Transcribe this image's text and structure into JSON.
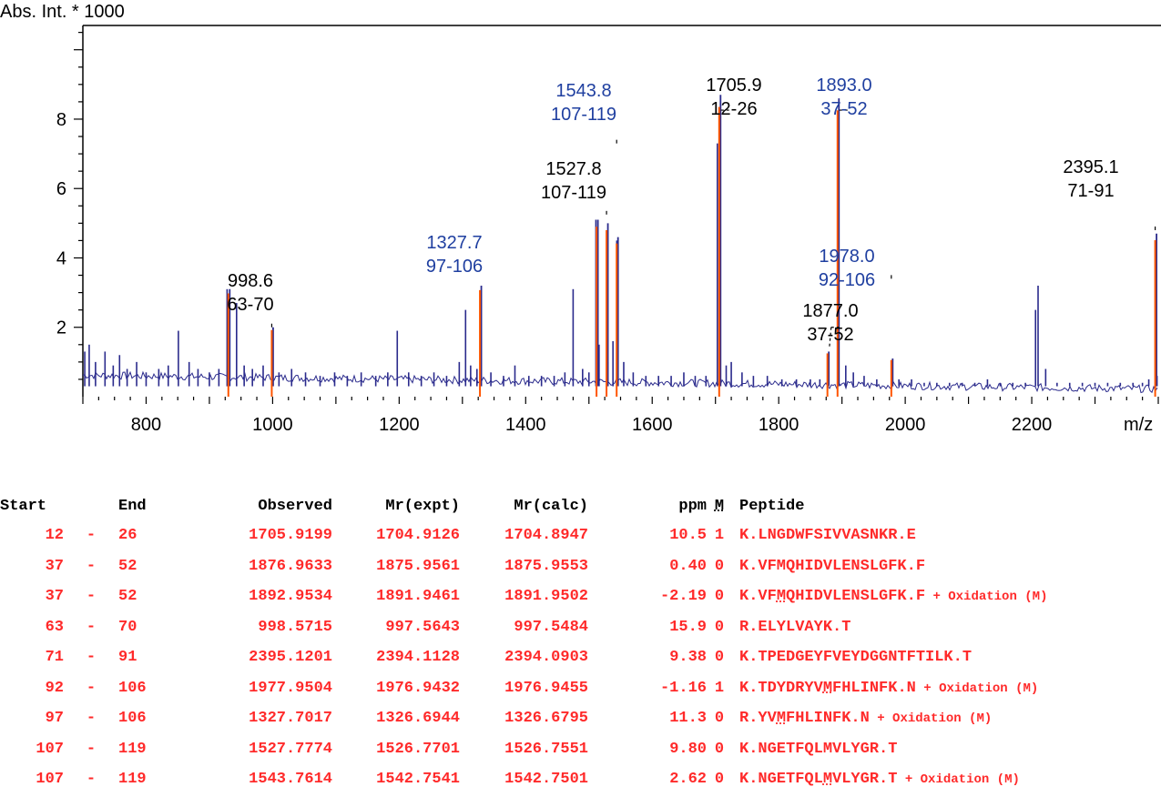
{
  "colors": {
    "spectrum": "#2a2a8c",
    "matched": "#ff5500",
    "blue_label": "#1f3fa0",
    "black_label": "#000000",
    "table_text": "#ff2a2a"
  },
  "chart_data": {
    "type": "line",
    "ylabel": "Abs. Int. * 1000",
    "xlabel": "m/z",
    "xlim": [
      700,
      2400
    ],
    "ylim": [
      0,
      10.7
    ],
    "x_ticks": [
      800,
      1000,
      1200,
      1400,
      1600,
      1800,
      2000,
      2200
    ],
    "y_ticks": [
      2,
      4,
      6,
      8
    ],
    "baseline_peaks": [
      {
        "mz": 703,
        "h": 1.3
      },
      {
        "mz": 710,
        "h": 1.5
      },
      {
        "mz": 720,
        "h": 1.0
      },
      {
        "mz": 735,
        "h": 1.3
      },
      {
        "mz": 748,
        "h": 0.9
      },
      {
        "mz": 758,
        "h": 1.2
      },
      {
        "mz": 770,
        "h": 0.8
      },
      {
        "mz": 785,
        "h": 1.0
      },
      {
        "mz": 800,
        "h": 0.7
      },
      {
        "mz": 820,
        "h": 0.8
      },
      {
        "mz": 835,
        "h": 0.9
      },
      {
        "mz": 851,
        "h": 1.9
      },
      {
        "mz": 868,
        "h": 1.0
      },
      {
        "mz": 882,
        "h": 0.8
      },
      {
        "mz": 900,
        "h": 0.7
      },
      {
        "mz": 915,
        "h": 0.8
      },
      {
        "mz": 928,
        "h": 3.1
      },
      {
        "mz": 943,
        "h": 2.7
      },
      {
        "mz": 955,
        "h": 0.9
      },
      {
        "mz": 968,
        "h": 0.8
      },
      {
        "mz": 985,
        "h": 0.9
      },
      {
        "mz": 1010,
        "h": 0.7
      },
      {
        "mz": 1030,
        "h": 0.8
      },
      {
        "mz": 1052,
        "h": 0.7
      },
      {
        "mz": 1075,
        "h": 0.6
      },
      {
        "mz": 1098,
        "h": 0.7
      },
      {
        "mz": 1118,
        "h": 0.6
      },
      {
        "mz": 1140,
        "h": 0.7
      },
      {
        "mz": 1163,
        "h": 0.6
      },
      {
        "mz": 1182,
        "h": 0.7
      },
      {
        "mz": 1197,
        "h": 1.9
      },
      {
        "mz": 1215,
        "h": 0.7
      },
      {
        "mz": 1235,
        "h": 0.6
      },
      {
        "mz": 1255,
        "h": 0.7
      },
      {
        "mz": 1275,
        "h": 0.6
      },
      {
        "mz": 1295,
        "h": 1.0
      },
      {
        "mz": 1305,
        "h": 2.5
      },
      {
        "mz": 1313,
        "h": 0.9
      },
      {
        "mz": 1323,
        "h": 0.8
      },
      {
        "mz": 1345,
        "h": 0.7
      },
      {
        "mz": 1365,
        "h": 0.6
      },
      {
        "mz": 1383,
        "h": 0.9
      },
      {
        "mz": 1405,
        "h": 0.6
      },
      {
        "mz": 1425,
        "h": 0.6
      },
      {
        "mz": 1445,
        "h": 0.6
      },
      {
        "mz": 1462,
        "h": 0.7
      },
      {
        "mz": 1475,
        "h": 3.1
      },
      {
        "mz": 1490,
        "h": 0.8
      },
      {
        "mz": 1500,
        "h": 0.7
      },
      {
        "mz": 1511,
        "h": 5.1
      },
      {
        "mz": 1516,
        "h": 1.5
      },
      {
        "mz": 1530,
        "h": 1.0
      },
      {
        "mz": 1538,
        "h": 1.6
      },
      {
        "mz": 1544,
        "h": 4.5
      },
      {
        "mz": 1555,
        "h": 1.0
      },
      {
        "mz": 1570,
        "h": 0.7
      },
      {
        "mz": 1590,
        "h": 0.6
      },
      {
        "mz": 1610,
        "h": 0.6
      },
      {
        "mz": 1630,
        "h": 0.6
      },
      {
        "mz": 1650,
        "h": 0.7
      },
      {
        "mz": 1668,
        "h": 0.6
      },
      {
        "mz": 1685,
        "h": 0.6
      },
      {
        "mz": 1703,
        "h": 7.3
      },
      {
        "mz": 1717,
        "h": 0.9
      },
      {
        "mz": 1725,
        "h": 1.0
      },
      {
        "mz": 1742,
        "h": 0.7
      },
      {
        "mz": 1760,
        "h": 0.6
      },
      {
        "mz": 1782,
        "h": 0.6
      },
      {
        "mz": 1805,
        "h": 0.5
      },
      {
        "mz": 1828,
        "h": 0.5
      },
      {
        "mz": 1850,
        "h": 0.5
      },
      {
        "mz": 1865,
        "h": 0.5
      },
      {
        "mz": 1895,
        "h": 2.3
      },
      {
        "mz": 1906,
        "h": 0.9
      },
      {
        "mz": 1918,
        "h": 0.7
      },
      {
        "mz": 1935,
        "h": 0.6
      },
      {
        "mz": 1955,
        "h": 0.5
      },
      {
        "mz": 1990,
        "h": 0.5
      },
      {
        "mz": 2010,
        "h": 0.5
      },
      {
        "mz": 2030,
        "h": 0.4
      },
      {
        "mz": 2050,
        "h": 0.4
      },
      {
        "mz": 2070,
        "h": 0.4
      },
      {
        "mz": 2090,
        "h": 0.4
      },
      {
        "mz": 2110,
        "h": 0.4
      },
      {
        "mz": 2130,
        "h": 0.5
      },
      {
        "mz": 2150,
        "h": 0.4
      },
      {
        "mz": 2170,
        "h": 0.4
      },
      {
        "mz": 2190,
        "h": 0.4
      },
      {
        "mz": 2206,
        "h": 2.5
      },
      {
        "mz": 2210,
        "h": 3.2
      },
      {
        "mz": 2222,
        "h": 0.8
      },
      {
        "mz": 2240,
        "h": 0.4
      },
      {
        "mz": 2260,
        "h": 0.4
      },
      {
        "mz": 2280,
        "h": 0.4
      },
      {
        "mz": 2300,
        "h": 0.4
      },
      {
        "mz": 2320,
        "h": 0.4
      },
      {
        "mz": 2340,
        "h": 0.4
      },
      {
        "mz": 2360,
        "h": 0.4
      },
      {
        "mz": 2375,
        "h": 0.4
      },
      {
        "mz": 2385,
        "h": 0.5
      },
      {
        "mz": 2396,
        "h": 1.5
      },
      {
        "mz": 2398,
        "h": 0.6
      }
    ],
    "matched_peaks": [
      {
        "mz": 930.0,
        "h": 3.1
      },
      {
        "mz": 998.6,
        "h": 2.0
      },
      {
        "mz": 1327.7,
        "h": 3.2
      },
      {
        "mz": 1512.0,
        "h": 5.1
      },
      {
        "mz": 1527.8,
        "h": 5.0
      },
      {
        "mz": 1543.8,
        "h": 4.6
      },
      {
        "mz": 1705.9,
        "h": 8.7
      },
      {
        "mz": 1877.0,
        "h": 1.3
      },
      {
        "mz": 1893.0,
        "h": 8.6
      },
      {
        "mz": 1978.0,
        "h": 1.1
      },
      {
        "mz": 2395.1,
        "h": 4.7
      }
    ],
    "annotations": [
      {
        "mz_text": "998.6",
        "range": "63-70",
        "color": "black"
      },
      {
        "mz_text": "1327.7",
        "range": "97-106",
        "color": "blue"
      },
      {
        "mz_text": "1527.8",
        "range": "107-119",
        "color": "black"
      },
      {
        "mz_text": "1543.8",
        "range": "107-119",
        "color": "blue"
      },
      {
        "mz_text": "1705.9",
        "range": "12-26",
        "color": "black"
      },
      {
        "mz_text": "1893.0",
        "range": "37-52",
        "color": "blue"
      },
      {
        "mz_text": "1877.0",
        "range": "37-52",
        "color": "black"
      },
      {
        "mz_text": "1978.0",
        "range": "92-106",
        "color": "blue"
      },
      {
        "mz_text": "2395.1",
        "range": "71-91",
        "color": "black"
      }
    ]
  },
  "table": {
    "headers": {
      "start": "Start",
      "end": "End",
      "observed": "Observed",
      "mr_expt": "Mr(expt)",
      "mr_calc": "Mr(calc)",
      "ppm": "ppm",
      "m": "M",
      "peptide": "Peptide"
    },
    "rows": [
      {
        "start": "12",
        "dash": "-",
        "end": "26",
        "observed": "1705.9199",
        "mr_expt": "1704.9126",
        "mr_calc": "1704.8947",
        "ppm": "10.5",
        "m": "1",
        "pep_pre": "K.LNGDWFSIVVASNKR.E",
        "pep_ox": "",
        "pep_post": "",
        "mod": ""
      },
      {
        "start": "37",
        "dash": "-",
        "end": "52",
        "observed": "1876.9633",
        "mr_expt": "1875.9561",
        "mr_calc": "1875.9553",
        "ppm": "0.40",
        "m": "0",
        "pep_pre": "K.VFMQHIDVLENSLGFK.F",
        "pep_ox": "",
        "pep_post": "",
        "mod": ""
      },
      {
        "start": "37",
        "dash": "-",
        "end": "52",
        "observed": "1892.9534",
        "mr_expt": "1891.9461",
        "mr_calc": "1891.9502",
        "ppm": "-2.19",
        "m": "0",
        "pep_pre": "K.VF",
        "pep_ox": "M",
        "pep_post": "QHIDVLENSLGFK.F",
        "mod": " + Oxidation (M)"
      },
      {
        "start": "63",
        "dash": "-",
        "end": "70",
        "observed": "998.5715",
        "mr_expt": "997.5643",
        "mr_calc": "997.5484",
        "ppm": "15.9",
        "m": "0",
        "pep_pre": "R.ELYLVAYK.T",
        "pep_ox": "",
        "pep_post": "",
        "mod": ""
      },
      {
        "start": "71",
        "dash": "-",
        "end": "91",
        "observed": "2395.1201",
        "mr_expt": "2394.1128",
        "mr_calc": "2394.0903",
        "ppm": "9.38",
        "m": "0",
        "pep_pre": "K.TPEDGEYFVEYDGGNTFTILK.T",
        "pep_ox": "",
        "pep_post": "",
        "mod": ""
      },
      {
        "start": "92",
        "dash": "-",
        "end": "106",
        "observed": "1977.9504",
        "mr_expt": "1976.9432",
        "mr_calc": "1976.9455",
        "ppm": "-1.16",
        "m": "1",
        "pep_pre": "K.TDYDRYV",
        "pep_ox": "M",
        "pep_post": "FHLINFK.N",
        "mod": " + Oxidation (M)"
      },
      {
        "start": "97",
        "dash": "-",
        "end": "106",
        "observed": "1327.7017",
        "mr_expt": "1326.6944",
        "mr_calc": "1326.6795",
        "ppm": "11.3",
        "m": "0",
        "pep_pre": "R.YV",
        "pep_ox": "M",
        "pep_post": "FHLINFK.N",
        "mod": " + Oxidation (M)"
      },
      {
        "start": "107",
        "dash": "-",
        "end": "119",
        "observed": "1527.7774",
        "mr_expt": "1526.7701",
        "mr_calc": "1526.7551",
        "ppm": "9.80",
        "m": "0",
        "pep_pre": "K.NGETFQLMVLYGR.T",
        "pep_ox": "",
        "pep_post": "",
        "mod": ""
      },
      {
        "start": "107",
        "dash": "-",
        "end": "119",
        "observed": "1543.7614",
        "mr_expt": "1542.7541",
        "mr_calc": "1542.7501",
        "ppm": "2.62",
        "m": "0",
        "pep_pre": "K.NGETFQL",
        "pep_ox": "M",
        "pep_post": "VLYGR.T",
        "mod": " + Oxidation (M)"
      }
    ]
  }
}
